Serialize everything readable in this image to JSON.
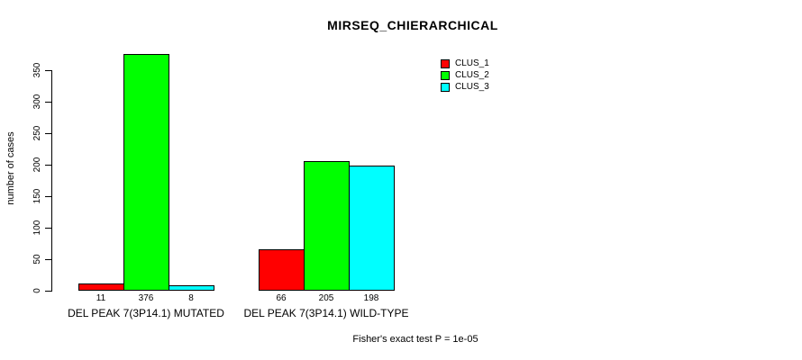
{
  "title": "MIRSEQ_CHIERARCHICAL",
  "footer": "Fisher's exact test P = 1e-05",
  "chart_data": {
    "type": "bar",
    "title": "MIRSEQ_CHIERARCHICAL",
    "ylabel": "number of cases",
    "xlabel": "",
    "ylim": [
      0,
      350
    ],
    "yticks": [
      0,
      50,
      100,
      150,
      200,
      250,
      300,
      350
    ],
    "grid": false,
    "legend_position": "top-right",
    "groups": [
      "DEL PEAK 7(3P14.1) MUTATED",
      "DEL PEAK 7(3P14.1) WILD-TYPE"
    ],
    "series": [
      {
        "name": "CLUS_1",
        "color": "#ff0000",
        "values": [
          11,
          66
        ]
      },
      {
        "name": "CLUS_2",
        "color": "#00ff00",
        "values": [
          376,
          205
        ]
      },
      {
        "name": "CLUS_3",
        "color": "#00ffff",
        "values": [
          8,
          198
        ]
      }
    ],
    "bar_value_labels": [
      [
        11,
        376,
        8
      ],
      [
        66,
        205,
        198
      ]
    ],
    "annotation": "Fisher's exact test P = 1e-05"
  }
}
